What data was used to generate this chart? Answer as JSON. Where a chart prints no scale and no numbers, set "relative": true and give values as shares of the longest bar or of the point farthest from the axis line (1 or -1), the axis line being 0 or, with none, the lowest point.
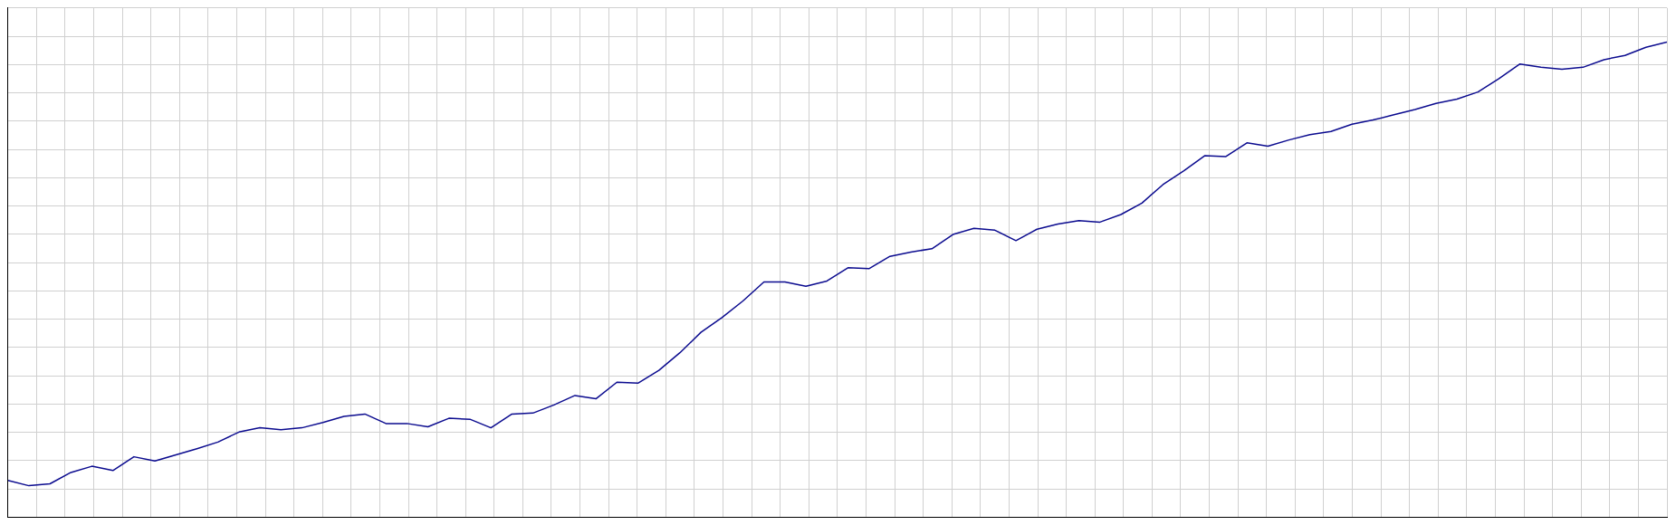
{
  "chart_data": {
    "type": "line",
    "relative": true,
    "grid": true,
    "legend": false,
    "marker": "none",
    "line_style": "solid",
    "categories": [
      null,
      null,
      null,
      null,
      null,
      null,
      null,
      null,
      null,
      null,
      null,
      null,
      null,
      null,
      null,
      null,
      null,
      null,
      null,
      null,
      null,
      null,
      null,
      null,
      null,
      null,
      null,
      null,
      null,
      null,
      null,
      null,
      null,
      null,
      null,
      null,
      null,
      null,
      null,
      null,
      null,
      null,
      null,
      null,
      null,
      null,
      null,
      null,
      null,
      null,
      null,
      null,
      null,
      null,
      null,
      null,
      null,
      null,
      null,
      null,
      null,
      null,
      null,
      null,
      null,
      null,
      null,
      null,
      null,
      null,
      null,
      null,
      null,
      null,
      null,
      null,
      null,
      null,
      null,
      null
    ],
    "series": [
      {
        "color": "#0b0b8f",
        "values": [
          0.077,
          0.066,
          0.07,
          0.094,
          0.107,
          0.098,
          0.127,
          0.118,
          0.131,
          0.144,
          0.158,
          0.179,
          0.188,
          0.184,
          0.188,
          0.199,
          0.212,
          0.217,
          0.197,
          0.197,
          0.19,
          0.208,
          0.206,
          0.188,
          0.217,
          0.219,
          0.236,
          0.256,
          0.249,
          0.284,
          0.282,
          0.309,
          0.346,
          0.389,
          0.42,
          0.455,
          0.495,
          0.495,
          0.486,
          0.497,
          0.525,
          0.523,
          0.549,
          0.558,
          0.565,
          0.595,
          0.608,
          0.604,
          0.582,
          0.606,
          0.617,
          0.624,
          0.621,
          0.637,
          0.661,
          0.7,
          0.729,
          0.761,
          0.759,
          0.788,
          0.781,
          0.794,
          0.805,
          0.812,
          0.827,
          0.836,
          0.847,
          0.858,
          0.871,
          0.88,
          0.895,
          0.923,
          0.954,
          0.947,
          0.943,
          0.947,
          0.963,
          0.972,
          0.989,
          1.0
        ]
      }
    ]
  }
}
